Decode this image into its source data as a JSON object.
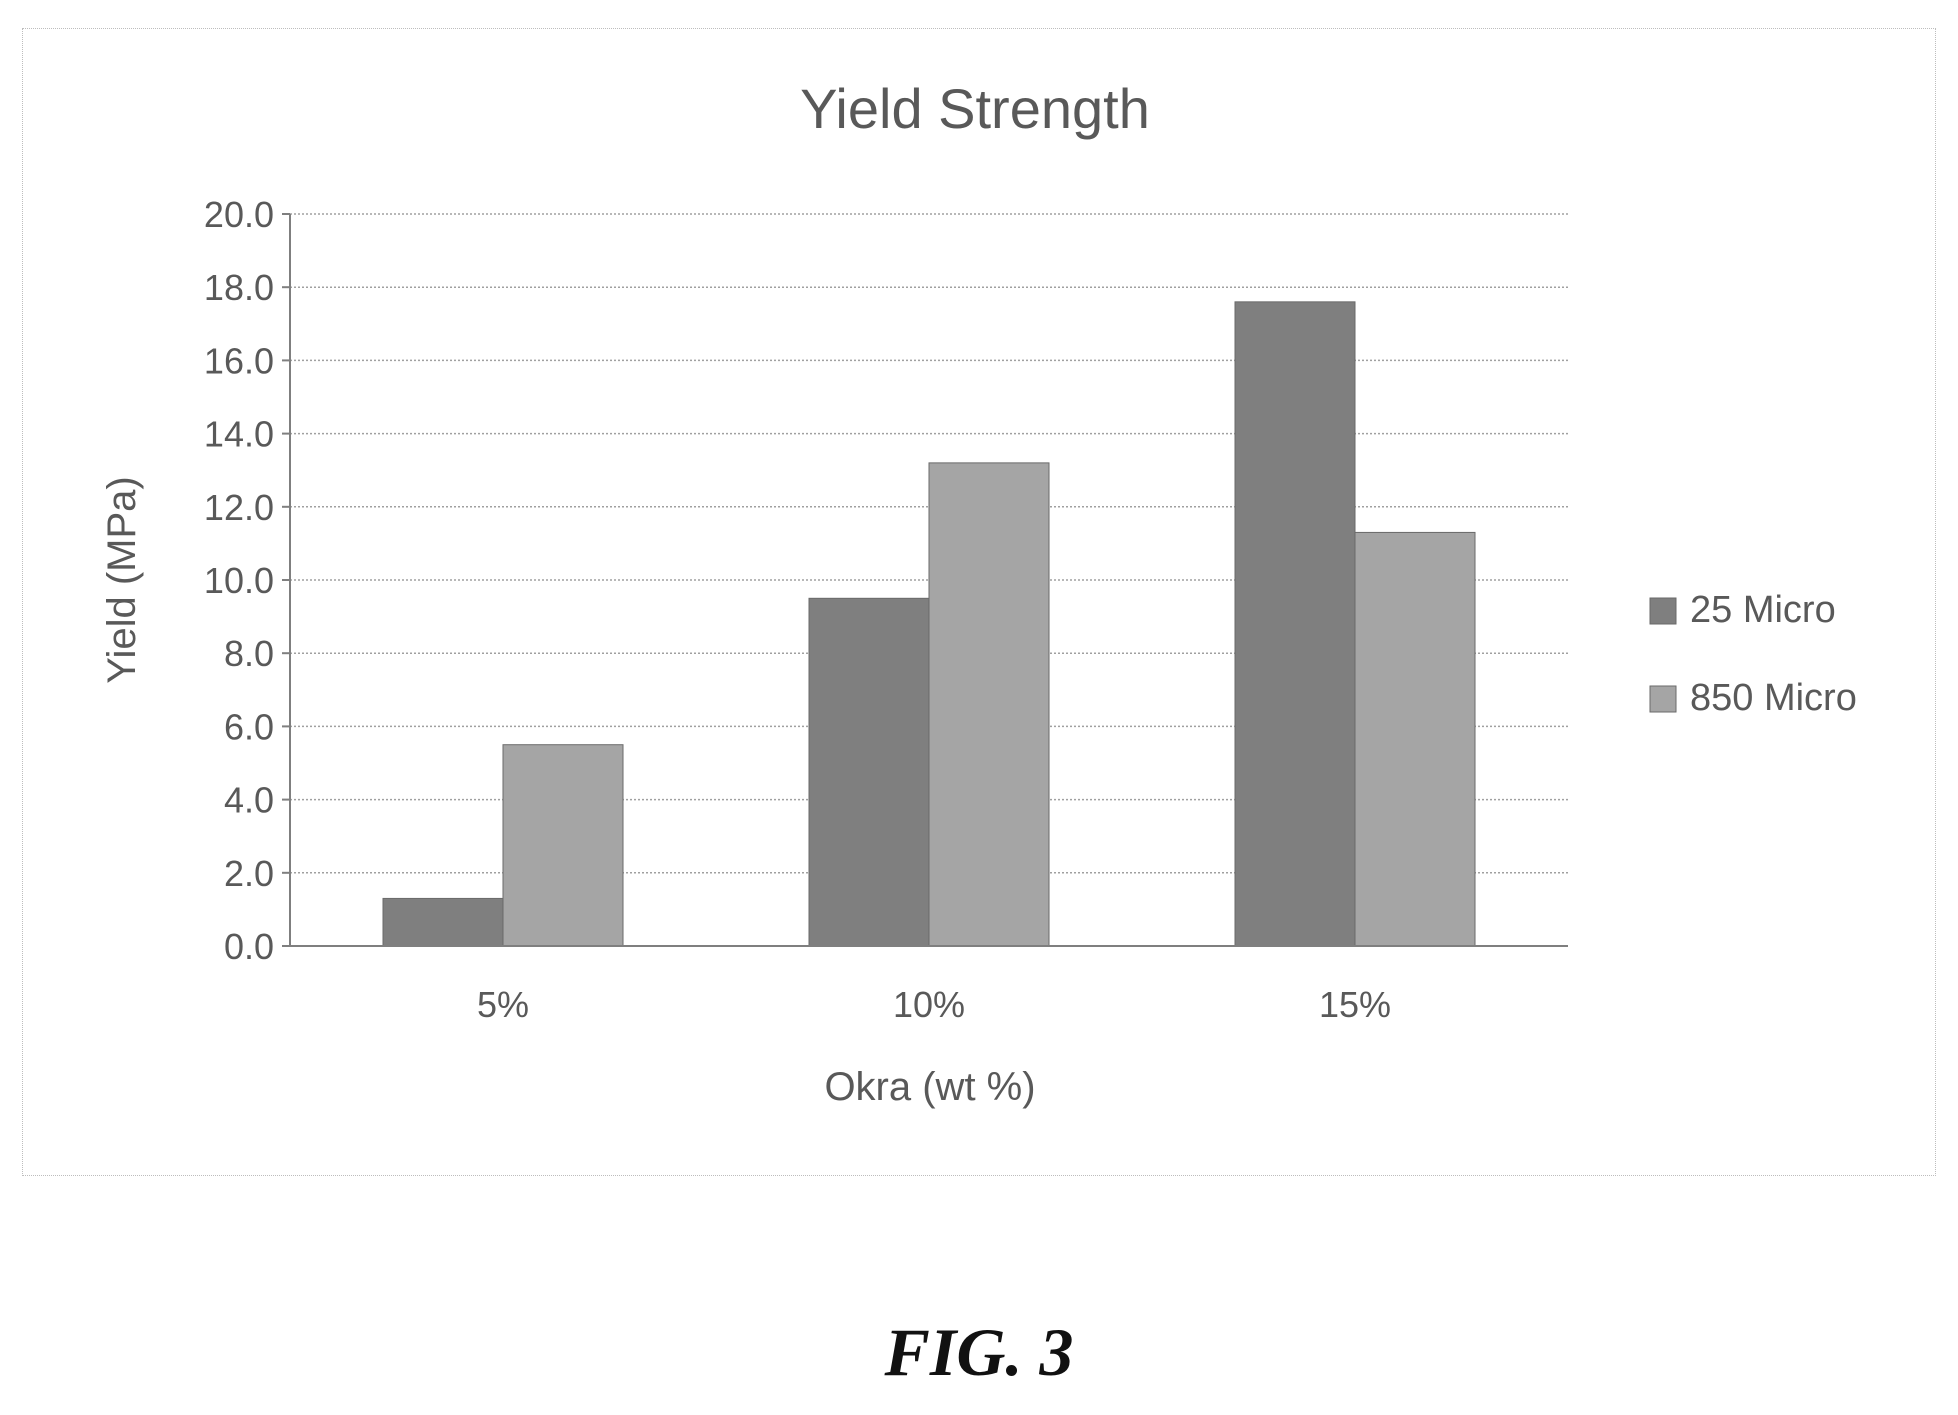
{
  "chart_data": {
    "type": "bar",
    "title": "Yield Strength",
    "xlabel": "Okra (wt %)",
    "ylabel": "Yield (MPa)",
    "categories": [
      "5%",
      "10%",
      "15%"
    ],
    "series": [
      {
        "name": "25 Micro",
        "values": [
          1.3,
          9.5,
          17.6
        ],
        "color": "#7f7f7f"
      },
      {
        "name": "850 Micro",
        "values": [
          5.5,
          13.2,
          11.3
        ],
        "color": "#a5a5a5"
      }
    ],
    "ylim": [
      0,
      20
    ],
    "yticks": [
      "0.0",
      "2.0",
      "4.0",
      "6.0",
      "8.0",
      "10.0",
      "12.0",
      "14.0",
      "16.0",
      "18.0",
      "20.0"
    ],
    "grid": true,
    "legend_position": "right"
  },
  "figure": {
    "caption": "FIG. 3"
  }
}
